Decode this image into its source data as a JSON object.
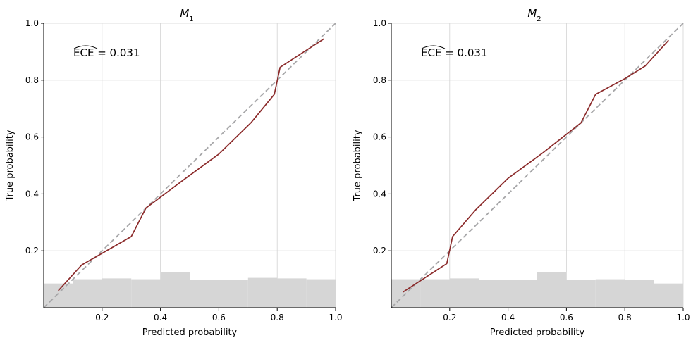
{
  "colors": {
    "curve": "#8b2a2a",
    "diagonal": "#a6a6a8",
    "histogram": "#d6d6d6",
    "grid": "#d3d3d3",
    "axis": "#000000"
  },
  "chart_data": [
    {
      "type": "line",
      "title": "M",
      "title_subscript": "1",
      "xlabel": "Predicted probability",
      "ylabel": "True probability",
      "xlim": [
        0,
        1
      ],
      "ylim": [
        0,
        1
      ],
      "xticks": [
        "0.2",
        "0.4",
        "0.6",
        "0.8",
        "1.0"
      ],
      "yticks": [
        "0.2",
        "0.4",
        "0.6",
        "0.8",
        "1.0"
      ],
      "grid": true,
      "annotation": "ECE",
      "annotation_value": "= 0.031",
      "reference_line": "diagonal",
      "series": [
        {
          "x": [
            0.05,
            0.13,
            0.3,
            0.35,
            0.48,
            0.6,
            0.71,
            0.79,
            0.81,
            0.96
          ],
          "y": [
            0.06,
            0.15,
            0.25,
            0.35,
            0.45,
            0.54,
            0.65,
            0.75,
            0.845,
            0.945
          ]
        }
      ],
      "histogram": {
        "bins": [
          0,
          0.1,
          0.2,
          0.3,
          0.4,
          0.5,
          0.6,
          0.7,
          0.8,
          0.9,
          1.0
        ],
        "heights": [
          0.085,
          0.1,
          0.103,
          0.1,
          0.125,
          0.098,
          0.098,
          0.105,
          0.103,
          0.1
        ]
      }
    },
    {
      "type": "line",
      "title": "M",
      "title_subscript": "2",
      "xlabel": "Predicted probability",
      "ylabel": "True probability",
      "xlim": [
        0,
        1
      ],
      "ylim": [
        0,
        1
      ],
      "xticks": [
        "0.2",
        "0.4",
        "0.6",
        "0.8",
        "1.0"
      ],
      "yticks": [
        "0.2",
        "0.4",
        "0.6",
        "0.8",
        "1.0"
      ],
      "grid": true,
      "annotation": "ECE",
      "annotation_value": "= 0.031",
      "reference_line": "diagonal",
      "series": [
        {
          "x": [
            0.04,
            0.19,
            0.21,
            0.29,
            0.4,
            0.52,
            0.65,
            0.7,
            0.8,
            0.87,
            0.95
          ],
          "y": [
            0.055,
            0.155,
            0.25,
            0.345,
            0.455,
            0.545,
            0.65,
            0.75,
            0.805,
            0.85,
            0.94
          ]
        }
      ],
      "histogram": {
        "bins": [
          0,
          0.1,
          0.2,
          0.3,
          0.4,
          0.5,
          0.6,
          0.7,
          0.8,
          0.9,
          1.0
        ],
        "heights": [
          0.1,
          0.1,
          0.103,
          0.098,
          0.098,
          0.125,
          0.098,
          0.1,
          0.098,
          0.085
        ]
      }
    }
  ]
}
